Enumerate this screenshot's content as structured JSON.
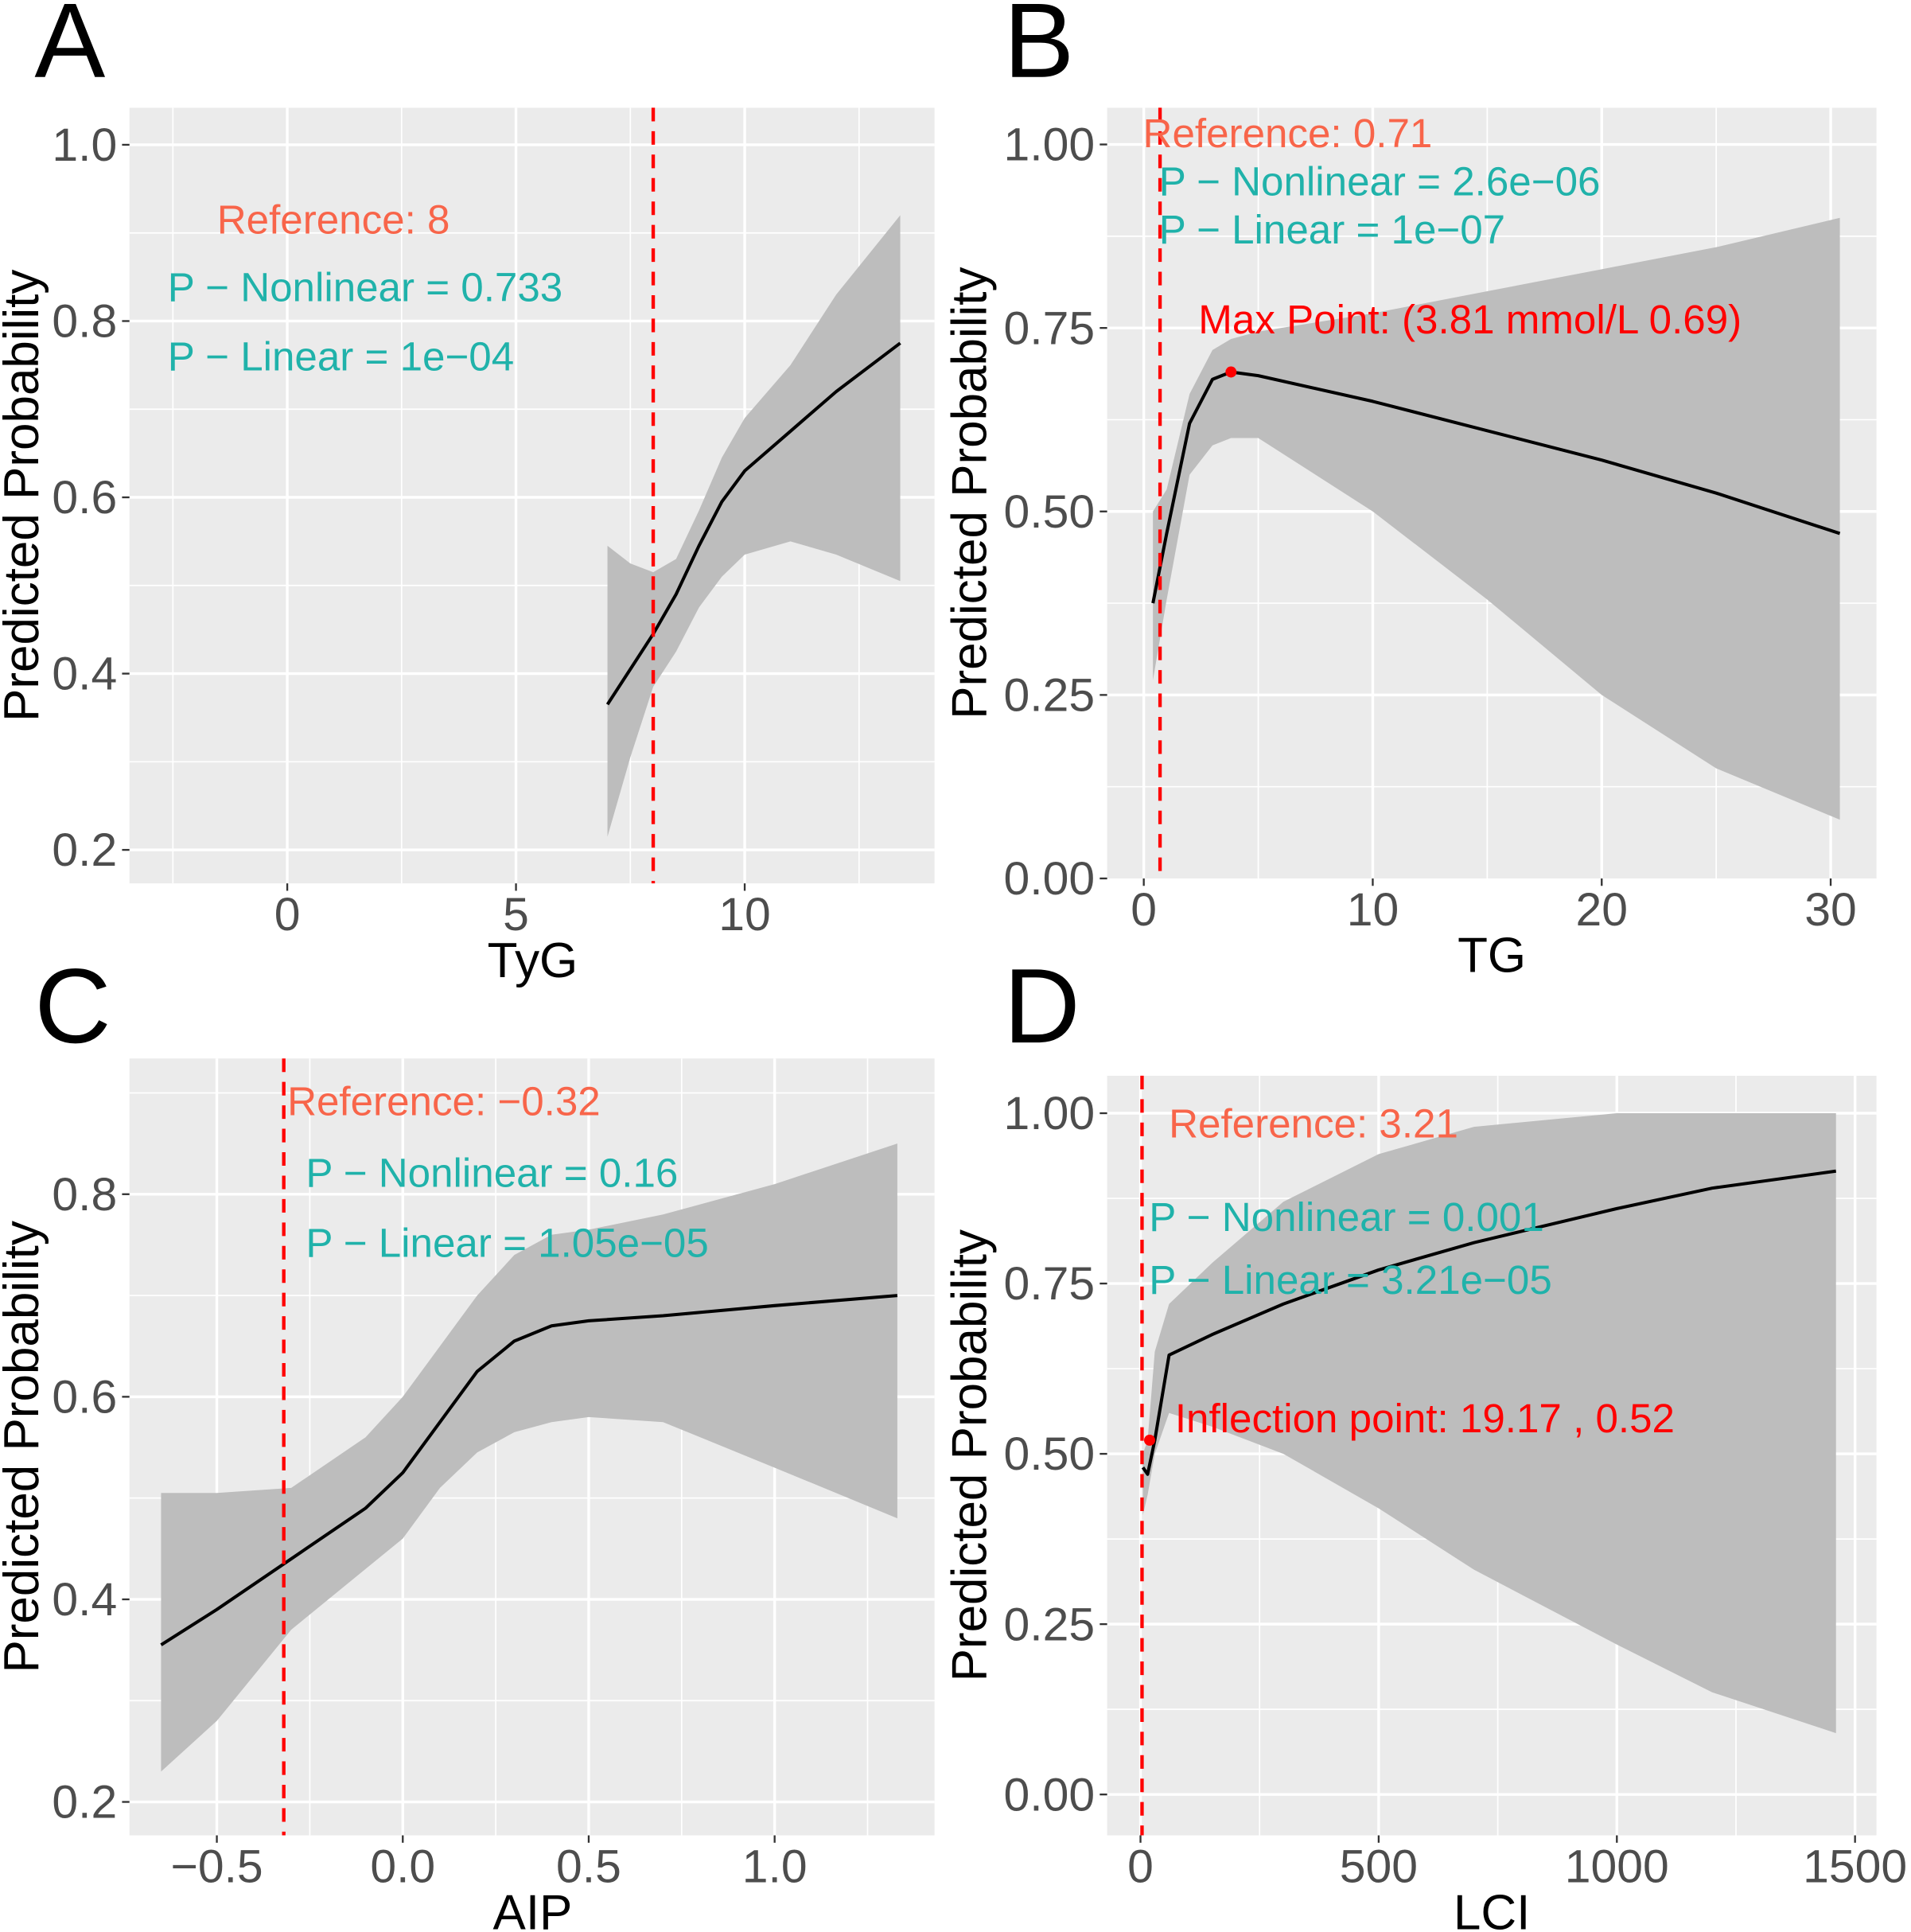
{
  "colors": {
    "panel_bg": "#ebebeb",
    "grid": "#ffffff",
    "ribbon": "#bdbdbd",
    "line": "#000000",
    "ref_line": "#ff0000",
    "reference_text": "#f8654a",
    "p_text": "#20b2aa",
    "highlight_text": "#ff0000"
  },
  "chart_data": [
    {
      "panel": "A",
      "type": "line",
      "xlabel": "TyG",
      "ylabel": "Predicted Probability",
      "xlim": [
        -3.45,
        14.15
      ],
      "ylim": [
        0.162,
        1.042
      ],
      "xticks": [
        0,
        5,
        10
      ],
      "xtick_labels": [
        "0",
        "5",
        "10"
      ],
      "yticks": [
        0.2,
        0.4,
        0.6,
        0.8,
        1.0
      ],
      "ytick_labels": [
        "0.2",
        "0.4",
        "0.6",
        "0.8",
        "1.0"
      ],
      "reference": 8,
      "x": [
        7,
        7.5,
        8,
        8.5,
        9,
        9.5,
        10,
        11,
        12,
        13.4
      ],
      "y": [
        0.365,
        0.405,
        0.445,
        0.49,
        0.545,
        0.595,
        0.63,
        0.675,
        0.72,
        0.775
      ],
      "upper": [
        0.545,
        0.525,
        0.515,
        0.53,
        0.585,
        0.645,
        0.69,
        0.75,
        0.83,
        0.92
      ],
      "lower": [
        0.215,
        0.305,
        0.385,
        0.425,
        0.475,
        0.51,
        0.535,
        0.55,
        0.535,
        0.505
      ],
      "annotations": {
        "reference": "Reference: 8",
        "p_nonlinear": "P − Nonlinear = 0.733",
        "p_linear": "P − Linear =  1e−04"
      }
    },
    {
      "panel": "B",
      "type": "line",
      "xlabel": "TG",
      "ylabel": "Predicted Probability",
      "xlim": [
        -1.6,
        32
      ],
      "ylim": [
        -0.0,
        1.05
      ],
      "xticks": [
        0,
        10,
        20,
        30
      ],
      "xtick_labels": [
        "0",
        "10",
        "20",
        "30"
      ],
      "yticks": [
        0,
        0.25,
        0.5,
        0.75,
        1.0
      ],
      "ytick_labels": [
        "0.00",
        "0.25",
        "0.50",
        "0.75",
        "1.00"
      ],
      "reference": 0.71,
      "x": [
        0.4,
        1,
        2,
        3,
        3.81,
        5,
        10,
        15,
        20,
        25,
        30.4
      ],
      "y": [
        0.375,
        0.47,
        0.62,
        0.68,
        0.69,
        0.685,
        0.65,
        0.61,
        0.57,
        0.525,
        0.47
      ],
      "upper": [
        0.5,
        0.53,
        0.66,
        0.72,
        0.735,
        0.745,
        0.77,
        0.8,
        0.83,
        0.86,
        0.9
      ],
      "lower": [
        0.27,
        0.38,
        0.55,
        0.59,
        0.6,
        0.6,
        0.5,
        0.38,
        0.25,
        0.15,
        0.08
      ],
      "point": {
        "x": 3.81,
        "y": 0.69
      },
      "annotations": {
        "reference": "Reference: 0.71",
        "p_nonlinear": "P − Nonlinear = 2.6e−06",
        "p_linear": "P − Linear =  1e−07",
        "highlight": "Max Point: (3.81 mmol/L 0.69)"
      }
    },
    {
      "panel": "C",
      "type": "line",
      "xlabel": "AIP",
      "ylabel": "Predicted Probability",
      "xlim": [
        -0.735,
        1.43
      ],
      "ylim": [
        0.167,
        0.934
      ],
      "xticks": [
        -0.5,
        0,
        0.5,
        1.0
      ],
      "xtick_labels": [
        "−0.5",
        "0.0",
        "0.5",
        "1.0"
      ],
      "yticks": [
        0.2,
        0.4,
        0.6,
        0.8
      ],
      "ytick_labels": [
        "0.2",
        "0.4",
        "0.6",
        "0.8"
      ],
      "reference": -0.32,
      "x": [
        -0.65,
        -0.5,
        -0.3,
        -0.1,
        0,
        0.1,
        0.2,
        0.3,
        0.4,
        0.5,
        0.7,
        1.0,
        1.33
      ],
      "y": [
        0.355,
        0.39,
        0.44,
        0.49,
        0.525,
        0.575,
        0.625,
        0.655,
        0.67,
        0.675,
        0.68,
        0.69,
        0.7
      ],
      "upper": [
        0.505,
        0.505,
        0.51,
        0.56,
        0.6,
        0.65,
        0.7,
        0.74,
        0.76,
        0.765,
        0.78,
        0.81,
        0.85
      ],
      "lower": [
        0.23,
        0.28,
        0.37,
        0.43,
        0.46,
        0.51,
        0.545,
        0.565,
        0.575,
        0.58,
        0.575,
        0.53,
        0.48
      ],
      "annotations": {
        "reference": "Reference: −0.32",
        "p_nonlinear": "P − Nonlinear = 0.16",
        "p_linear": "P − Linear =  1.05e−05"
      }
    },
    {
      "panel": "D",
      "type": "line",
      "xlabel": "LCI",
      "ylabel": "Predicted Probability",
      "xlim": [
        -70,
        1545
      ],
      "ylim": [
        -0.06,
        1.055
      ],
      "xticks": [
        0,
        500,
        1000,
        1500
      ],
      "xtick_labels": [
        "0",
        "500",
        "1000",
        "1500"
      ],
      "yticks": [
        0,
        0.25,
        0.5,
        0.75,
        1.0
      ],
      "ytick_labels": [
        "0.00",
        "0.25",
        "0.50",
        "0.75",
        "1.00"
      ],
      "reference": 3.21,
      "x": [
        5,
        15,
        30,
        60,
        150,
        300,
        500,
        700,
        1000,
        1200,
        1460
      ],
      "y": [
        0.48,
        0.47,
        0.52,
        0.645,
        0.675,
        0.72,
        0.77,
        0.81,
        0.86,
        0.89,
        0.915
      ],
      "upper": [
        0.5,
        0.52,
        0.65,
        0.72,
        0.78,
        0.87,
        0.94,
        0.98,
        1.0,
        1.0,
        1.0
      ],
      "lower": [
        0.41,
        0.44,
        0.5,
        0.56,
        0.54,
        0.5,
        0.42,
        0.33,
        0.22,
        0.15,
        0.09
      ],
      "point": {
        "x": 19.17,
        "y": 0.52
      },
      "annotations": {
        "reference": "Reference: 3.21",
        "p_nonlinear": "P − Nonlinear = 0.001",
        "p_linear": "P − Linear =  3.21e−05",
        "highlight": "Inflection point: 19.17 , 0.52"
      }
    }
  ]
}
